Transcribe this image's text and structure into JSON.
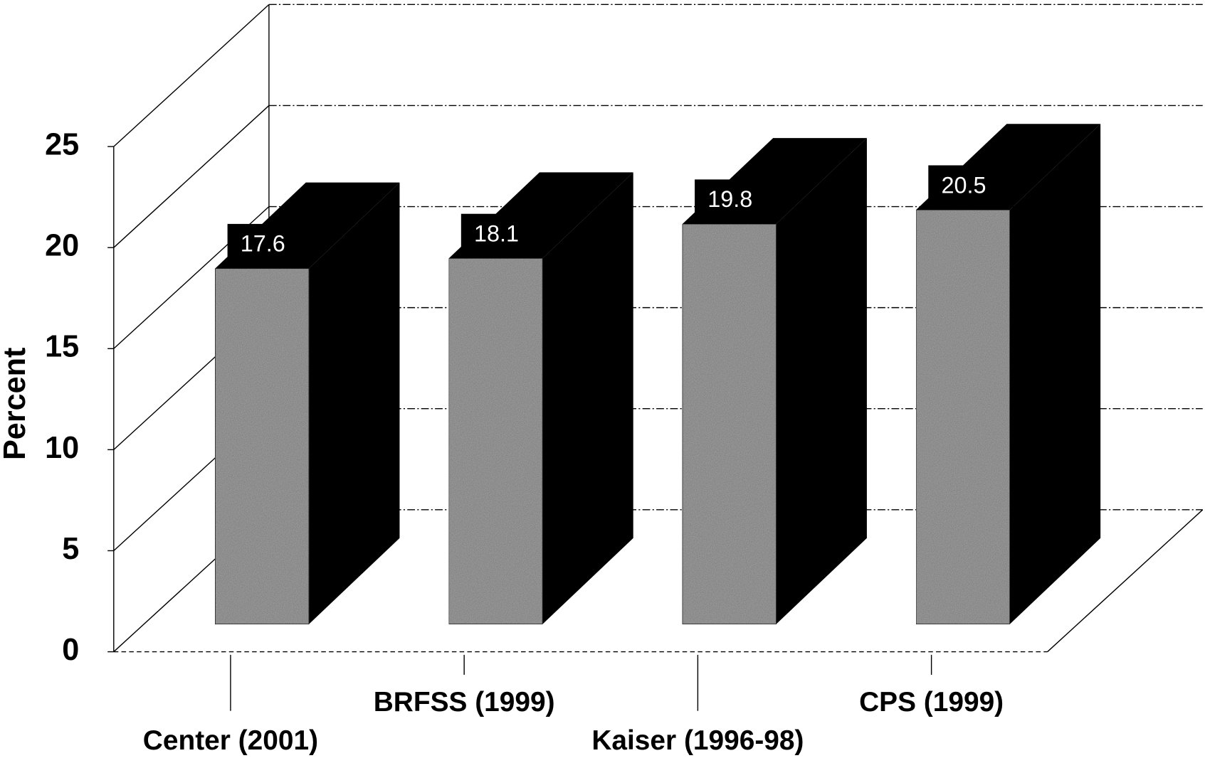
{
  "chart_data": {
    "type": "bar3d",
    "y_label": "Percent",
    "categories": [
      "Center (2001)",
      "BRFSS (1999)",
      "Kaiser (1996-98)",
      "CPS (1999)"
    ],
    "values": [
      17.6,
      18.1,
      19.8,
      20.5
    ],
    "color": "#9a9a9a",
    "side_color": "#000000",
    "ylim": [
      0,
      25
    ],
    "yticks": [
      0,
      5,
      10,
      15,
      20,
      25
    ],
    "grid": true
  }
}
